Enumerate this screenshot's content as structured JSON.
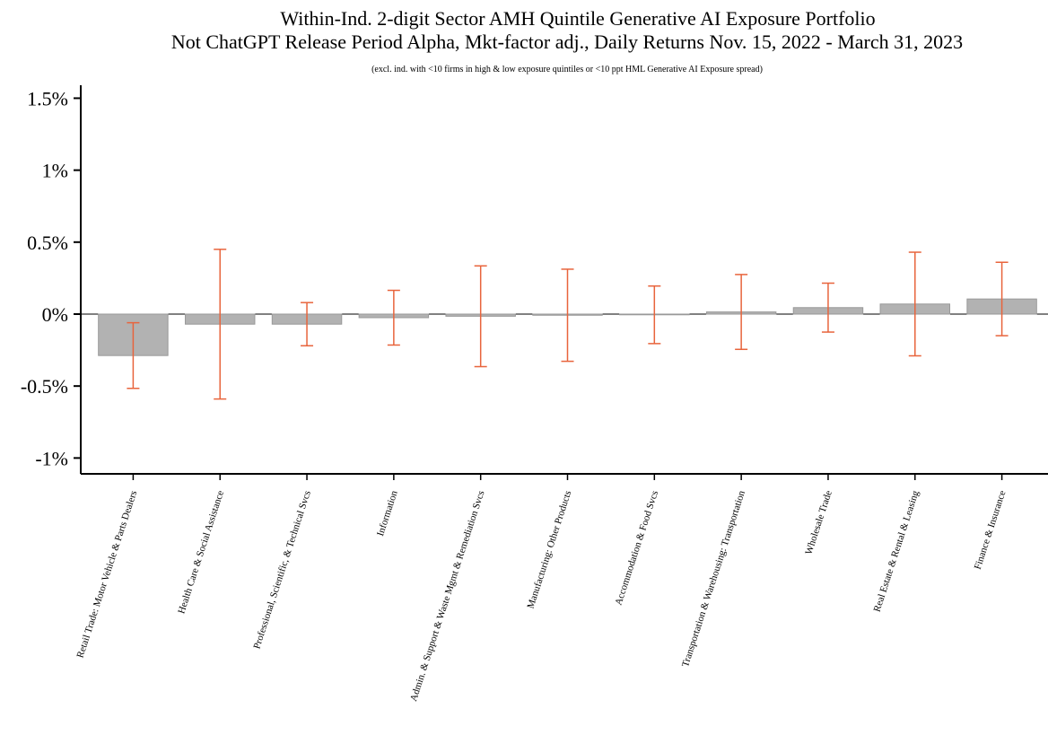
{
  "chart_data": {
    "type": "bar",
    "title": "Within-Ind. 2-digit Sector AMH Quintile Generative AI Exposure Portfolio",
    "subtitle": "Not ChatGPT Release Period Alpha, Mkt-factor adj., Daily Returns Nov. 15, 2022 - March 31, 2023",
    "note": "(excl. ind. with <10 firms in high & low exposure quintiles or <10 ppt HML Generative AI Exposure spread)",
    "categories": [
      "Retail Trade: Motor Vehicle & Parts Dealers",
      "Health Care & Social Assistance",
      "Professional, Scientific, & Technical Svcs",
      "Information",
      "Admin. & Support & Waste Mgmt & Remediation Svcs",
      "Manufacturing: Other Products",
      "Accommodation & Food Svcs",
      "Transportation & Warehousing: Transportation",
      "Wholesale Trade",
      "Real Estate & Rental & Leasing",
      "Finance & Insurance"
    ],
    "values": [
      -0.288,
      -0.07,
      -0.07,
      -0.025,
      -0.015,
      -0.008,
      -0.005,
      0.015,
      0.045,
      0.07,
      0.105
    ],
    "errors": [
      0.228,
      0.52,
      0.15,
      0.19,
      0.35,
      0.32,
      0.2,
      0.26,
      0.17,
      0.36,
      0.255
    ],
    "color": "#b2b2b2",
    "error_color": "#e8643c",
    "ylim": [
      -1.11,
      1.59
    ],
    "yticks": [
      {
        "value": -1,
        "label": "-1%"
      },
      {
        "value": -0.5,
        "label": "-0.5%"
      },
      {
        "value": 0,
        "label": "0%"
      },
      {
        "value": 0.5,
        "label": "0.5%"
      },
      {
        "value": 1,
        "label": "1%"
      },
      {
        "value": 1.5,
        "label": "1.5%"
      }
    ]
  }
}
